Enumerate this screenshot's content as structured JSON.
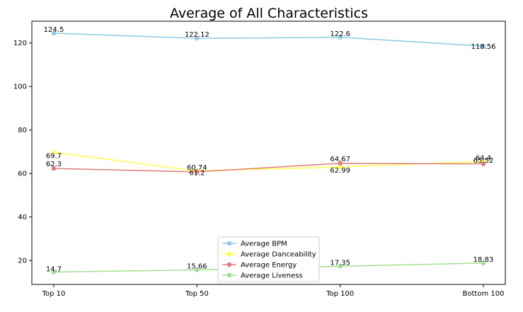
{
  "chart_data": {
    "type": "line",
    "title": "Average of All Characteristics",
    "xlabel": "",
    "ylabel": "",
    "categories": [
      "Top 10",
      "Top 50",
      "Top 100",
      "Bottom 100"
    ],
    "ylim": [
      9,
      130
    ],
    "yticks": [
      20,
      40,
      60,
      80,
      100,
      120
    ],
    "grid": false,
    "legend_position": "bottom-center",
    "series": [
      {
        "name": "Average BPM",
        "color": "#8ecae6",
        "values": [
          124.5,
          122.12,
          122.6,
          118.56
        ],
        "labels": [
          "124.5",
          "122.12",
          "122.6",
          "118.56"
        ]
      },
      {
        "name": "Average Danceability",
        "color": "#ffff4d",
        "values": [
          69.7,
          61.2,
          62.99,
          65.52
        ],
        "labels": [
          "69.7",
          "61.2",
          "62.99",
          "65.52"
        ]
      },
      {
        "name": "Average Energy",
        "color": "#e07b7b",
        "values": [
          62.3,
          60.74,
          64.67,
          64.4
        ],
        "labels": [
          "62.3",
          "60.74",
          "64.67",
          "64.4"
        ]
      },
      {
        "name": "Average Liveness",
        "color": "#a0e090",
        "values": [
          14.7,
          15.66,
          17.35,
          18.83
        ],
        "labels": [
          "14.7",
          "15.66",
          "17.35",
          "18.83"
        ]
      }
    ]
  }
}
